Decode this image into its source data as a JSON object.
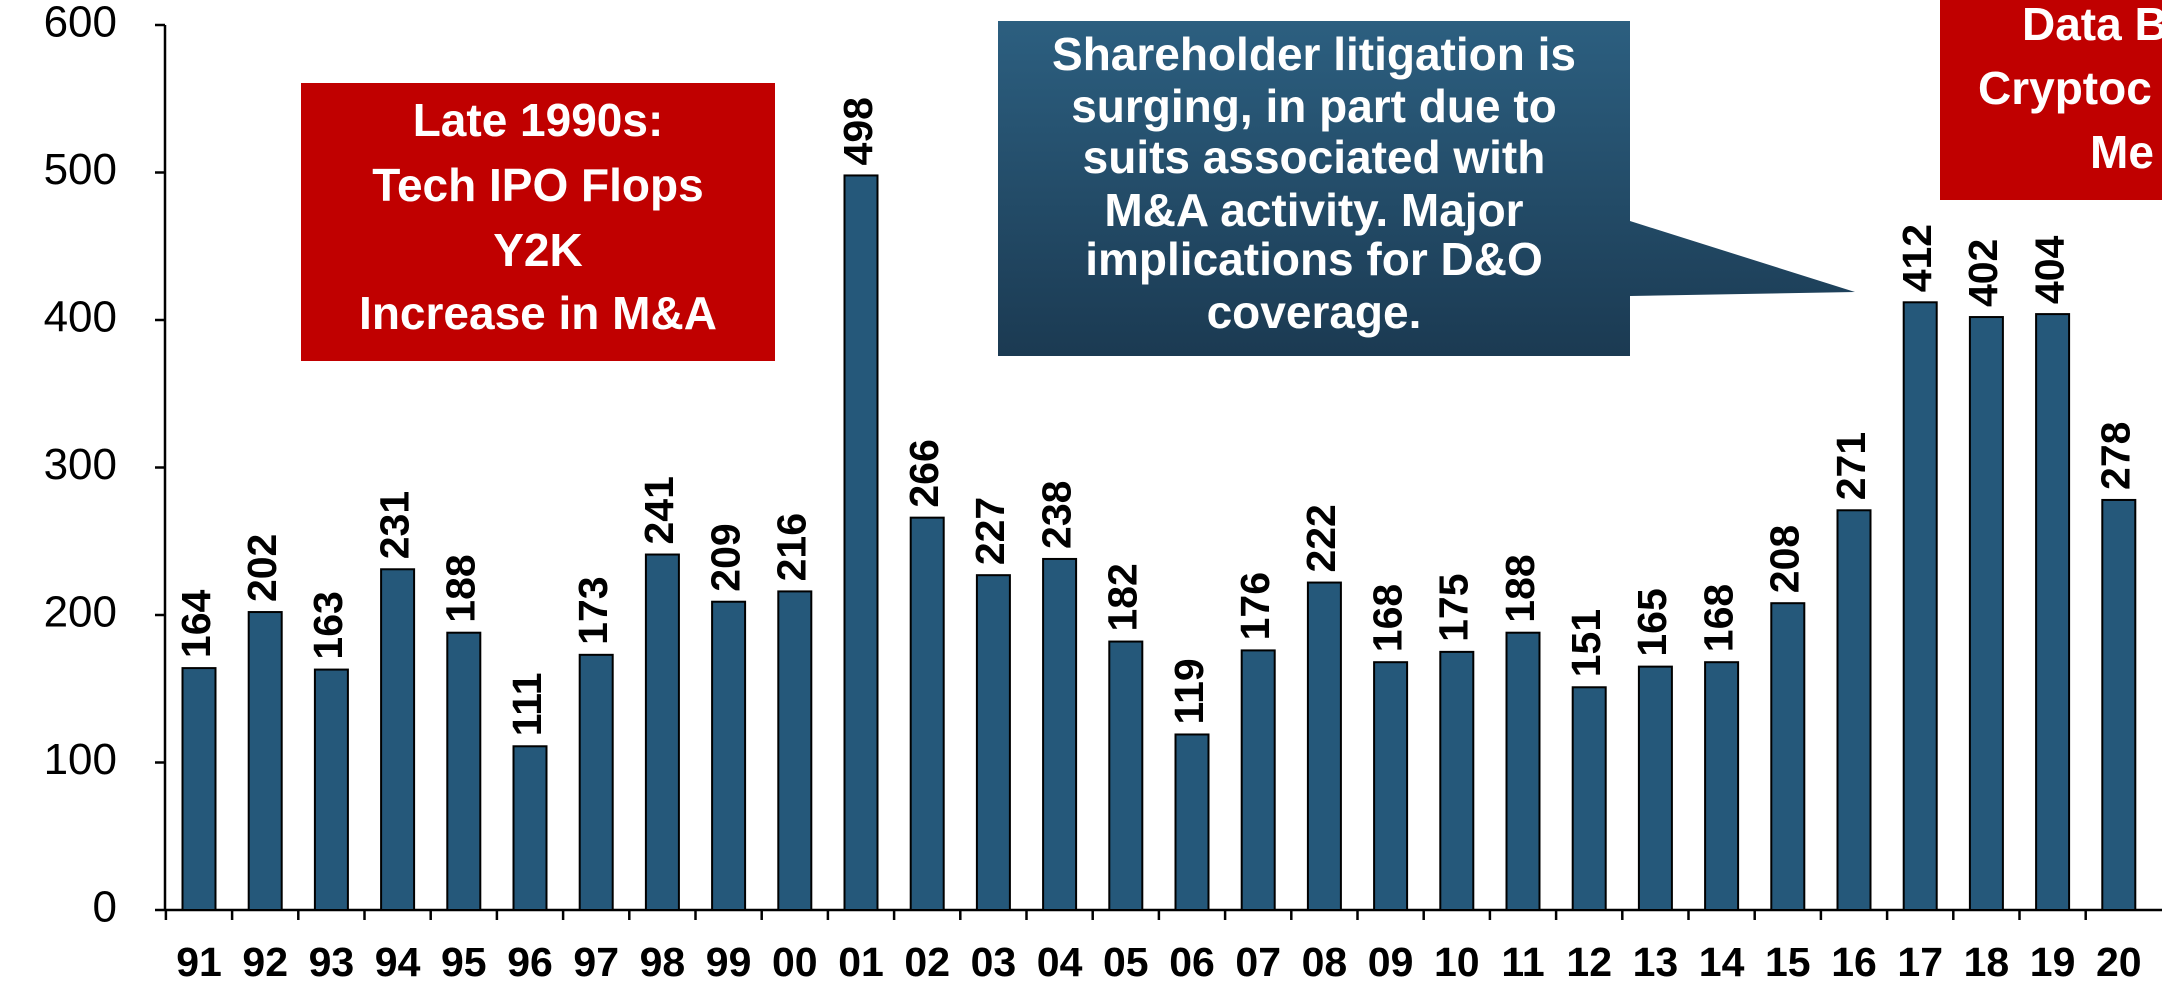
{
  "chart_data": {
    "type": "bar",
    "categories": [
      "91",
      "92",
      "93",
      "94",
      "95",
      "96",
      "97",
      "98",
      "99",
      "00",
      "01",
      "02",
      "03",
      "04",
      "05",
      "06",
      "07",
      "08",
      "09",
      "10",
      "11",
      "12",
      "13",
      "14",
      "15",
      "16",
      "17",
      "18",
      "19",
      "20"
    ],
    "values": [
      164,
      202,
      163,
      231,
      188,
      111,
      173,
      241,
      209,
      216,
      498,
      266,
      227,
      238,
      182,
      119,
      176,
      222,
      168,
      175,
      188,
      151,
      165,
      168,
      208,
      271,
      412,
      402,
      404,
      278
    ],
    "color": "#25587a",
    "ylim": [
      0,
      600
    ],
    "yticks": [
      0,
      100,
      200,
      300,
      400,
      500,
      600
    ],
    "annotations": [
      {
        "lines": [
          "Late 1990s:",
          "Tech IPO Flops",
          "Y2K",
          "Increase in M&A"
        ]
      },
      {
        "lines": [
          "Shareholder litigation is",
          "surging, in part due to",
          "suits associated with",
          "M&A activity.  Major",
          "implications for D&O",
          "coverage."
        ]
      },
      {
        "lines": [
          "Data B",
          "Cryptoc",
          "Me"
        ]
      }
    ]
  }
}
